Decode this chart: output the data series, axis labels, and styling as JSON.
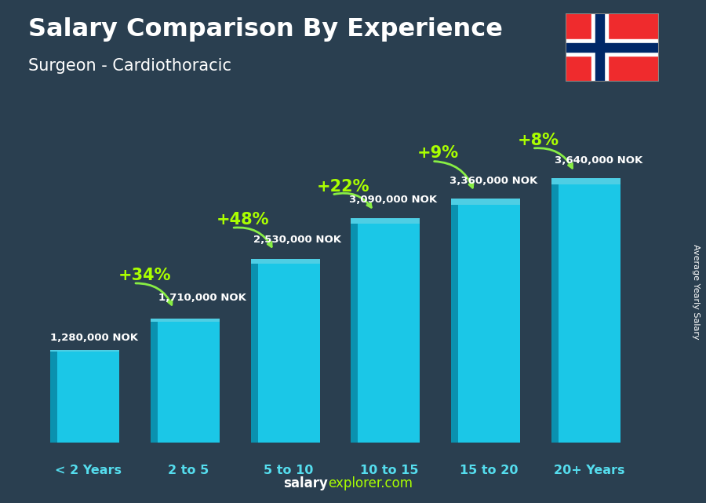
{
  "title": "Salary Comparison By Experience",
  "subtitle": "Surgeon - Cardiothoracic",
  "categories": [
    "< 2 Years",
    "2 to 5",
    "5 to 10",
    "10 to 15",
    "15 to 20",
    "20+ Years"
  ],
  "values": [
    1280000,
    1710000,
    2530000,
    3090000,
    3360000,
    3640000
  ],
  "value_labels": [
    "1,280,000 NOK",
    "1,710,000 NOK",
    "2,530,000 NOK",
    "3,090,000 NOK",
    "3,360,000 NOK",
    "3,640,000 NOK"
  ],
  "pct_labels": [
    "+34%",
    "+48%",
    "+22%",
    "+9%",
    "+8%"
  ],
  "bar_face_color": "#1ad4f5",
  "bar_left_color": "#0899b8",
  "bar_top_color": "#55e8ff",
  "bg_color": "#2a3f50",
  "title_color": "#ffffff",
  "subtitle_color": "#ffffff",
  "label_color": "#ffffff",
  "xaxis_color": "#55ddee",
  "pct_color": "#aaff00",
  "arrow_color": "#88ee44",
  "axis_label": "Average Yearly Salary",
  "footer_white": "salary",
  "footer_green": "explorer.com",
  "ylim": [
    0,
    4400000
  ],
  "flag_red": "#EF2B2D",
  "flag_blue": "#002868",
  "flag_white": "#ffffff",
  "annotations": [
    {
      "pct": "+34%",
      "from_bar": 0,
      "to_bar": 1
    },
    {
      "pct": "+48%",
      "from_bar": 1,
      "to_bar": 2
    },
    {
      "pct": "+22%",
      "from_bar": 2,
      "to_bar": 3
    },
    {
      "pct": "+9%",
      "from_bar": 3,
      "to_bar": 4
    },
    {
      "pct": "+8%",
      "from_bar": 4,
      "to_bar": 5
    }
  ]
}
